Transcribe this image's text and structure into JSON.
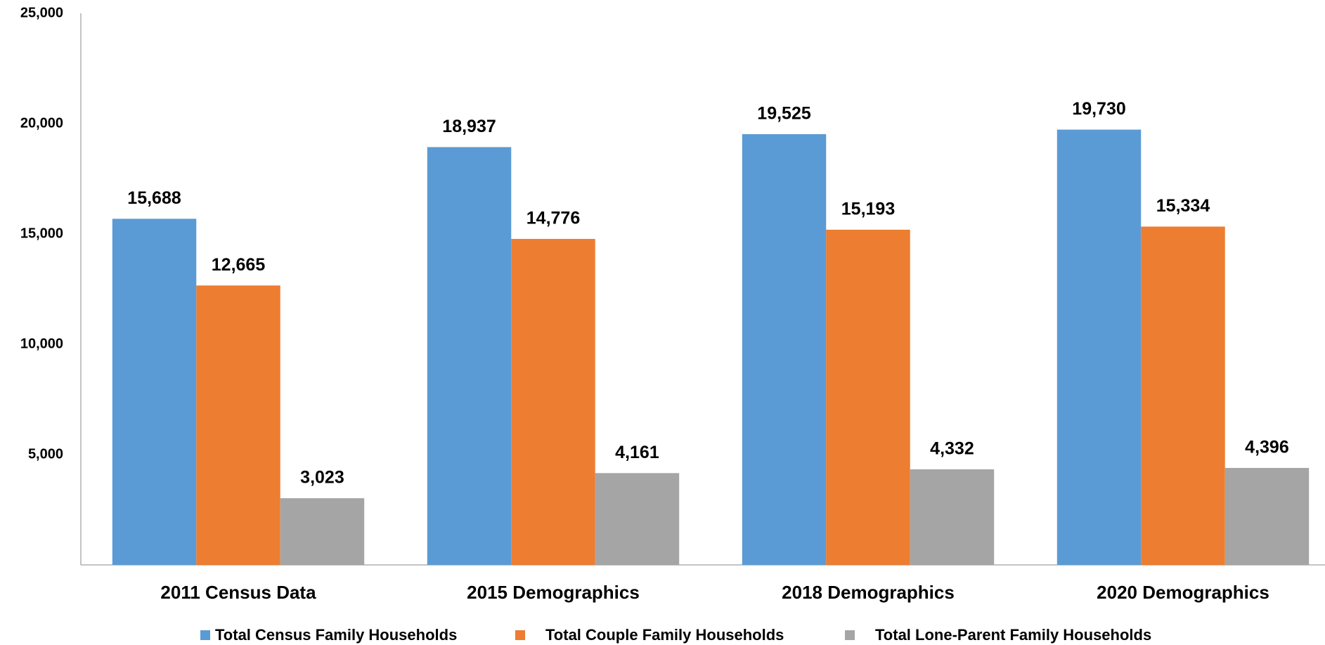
{
  "chart_data": {
    "type": "bar",
    "categories": [
      "2011 Census Data",
      "2015 Demographics",
      "2018 Demographics",
      "2020 Demographics"
    ],
    "series": [
      {
        "name": "Total Census Family Households",
        "color": "#5b9bd5",
        "values": [
          15688,
          18937,
          19525,
          19730
        ],
        "value_labels": [
          "15,688",
          "18,937",
          "19,525",
          "19,730"
        ]
      },
      {
        "name": "Total Couple Family Households",
        "color": "#ed7d31",
        "values": [
          12665,
          14776,
          15193,
          15334
        ],
        "value_labels": [
          "12,665",
          "14,776",
          "15,193",
          "15,334"
        ]
      },
      {
        "name": "Total Lone-Parent Family Households",
        "color": "#a5a5a5",
        "values": [
          3023,
          4161,
          4332,
          4396
        ],
        "value_labels": [
          "3,023",
          "4,161",
          "4,332",
          "4,396"
        ]
      }
    ],
    "ylim": [
      0,
      25000
    ],
    "yticks": [
      {
        "value": 5000,
        "label": "5,000"
      },
      {
        "value": 10000,
        "label": "10,000"
      },
      {
        "value": 15000,
        "label": "15,000"
      },
      {
        "value": 20000,
        "label": "20,000"
      },
      {
        "value": 25000,
        "label": "25,000"
      }
    ],
    "grid": false,
    "legend": "bottom"
  }
}
